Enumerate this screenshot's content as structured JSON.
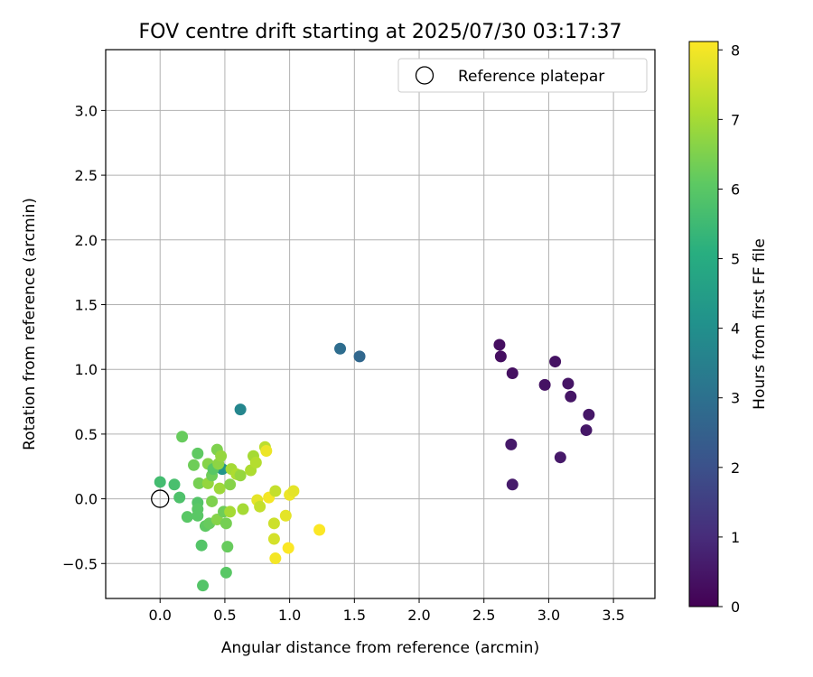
{
  "chart_data": {
    "type": "scatter",
    "title": "FOV centre drift starting at 2025/07/30 03:17:37",
    "xlabel": "Angular distance from reference (arcmin)",
    "ylabel": "Rotation from reference (arcmin)",
    "xlim": [
      -0.42,
      3.82
    ],
    "ylim": [
      -0.77,
      3.47
    ],
    "xticks": [
      "0.0",
      "0.5",
      "1.0",
      "1.5",
      "2.0",
      "2.5",
      "3.0",
      "3.5"
    ],
    "xtick_values": [
      0,
      0.5,
      1,
      1.5,
      2,
      2.5,
      3,
      3.5
    ],
    "yticks": [
      "−0.5",
      "0.0",
      "0.5",
      "1.0",
      "1.5",
      "2.0",
      "2.5",
      "3.0"
    ],
    "ytick_values": [
      -0.5,
      0,
      0.5,
      1,
      1.5,
      2,
      2.5,
      3
    ],
    "grid": true,
    "legend_position": "top-right",
    "legend": {
      "label": "Reference platepar"
    },
    "reference_point": {
      "x": 0,
      "y": 0
    },
    "colorbar": {
      "label": "Hours from first FF file",
      "colormap": "viridis",
      "range": [
        0,
        8.12
      ],
      "ticks": [
        "0",
        "1",
        "2",
        "3",
        "4",
        "5",
        "6",
        "7",
        "8"
      ],
      "tick_values": [
        0,
        1,
        2,
        3,
        4,
        5,
        6,
        7,
        8
      ]
    },
    "points": [
      {
        "x": 2.62,
        "y": 1.19,
        "h": 0.3
      },
      {
        "x": 2.63,
        "y": 1.1,
        "h": 0.3
      },
      {
        "x": 2.72,
        "y": 0.97,
        "h": 0.35
      },
      {
        "x": 3.05,
        "y": 1.06,
        "h": 0.4
      },
      {
        "x": 2.97,
        "y": 0.88,
        "h": 0.4
      },
      {
        "x": 3.15,
        "y": 0.89,
        "h": 0.45
      },
      {
        "x": 3.17,
        "y": 0.79,
        "h": 0.45
      },
      {
        "x": 3.31,
        "y": 0.65,
        "h": 0.5
      },
      {
        "x": 3.29,
        "y": 0.53,
        "h": 0.5
      },
      {
        "x": 2.71,
        "y": 0.42,
        "h": 0.55
      },
      {
        "x": 3.09,
        "y": 0.32,
        "h": 0.55
      },
      {
        "x": 2.72,
        "y": 0.11,
        "h": 0.6
      },
      {
        "x": 1.39,
        "y": 1.16,
        "h": 2.9
      },
      {
        "x": 1.54,
        "y": 1.1,
        "h": 2.7
      },
      {
        "x": 0.62,
        "y": 0.69,
        "h": 3.7
      },
      {
        "x": 0.48,
        "y": 0.23,
        "h": 4.2
      },
      {
        "x": 0.0,
        "y": 0.13,
        "h": 5.6
      },
      {
        "x": 0.11,
        "y": 0.11,
        "h": 5.7
      },
      {
        "x": 0.15,
        "y": 0.01,
        "h": 5.8
      },
      {
        "x": 0.17,
        "y": 0.48,
        "h": 6.2
      },
      {
        "x": 0.21,
        "y": -0.14,
        "h": 6.0
      },
      {
        "x": 0.26,
        "y": 0.26,
        "h": 6.3
      },
      {
        "x": 0.29,
        "y": 0.35,
        "h": 6.1
      },
      {
        "x": 0.29,
        "y": -0.03,
        "h": 5.9
      },
      {
        "x": 0.29,
        "y": -0.08,
        "h": 6.0
      },
      {
        "x": 0.29,
        "y": -0.13,
        "h": 6.0
      },
      {
        "x": 0.3,
        "y": 0.12,
        "h": 6.4
      },
      {
        "x": 0.32,
        "y": -0.36,
        "h": 5.9
      },
      {
        "x": 0.33,
        "y": -0.67,
        "h": 5.9
      },
      {
        "x": 0.35,
        "y": -0.21,
        "h": 6.1
      },
      {
        "x": 0.37,
        "y": 0.27,
        "h": 6.6
      },
      {
        "x": 0.37,
        "y": 0.12,
        "h": 6.8
      },
      {
        "x": 0.38,
        "y": -0.19,
        "h": 6.2
      },
      {
        "x": 0.4,
        "y": -0.02,
        "h": 6.5
      },
      {
        "x": 0.4,
        "y": 0.18,
        "h": 6.3
      },
      {
        "x": 0.41,
        "y": 0.23,
        "h": 6.0
      },
      {
        "x": 0.44,
        "y": -0.16,
        "h": 6.6
      },
      {
        "x": 0.44,
        "y": 0.38,
        "h": 6.5
      },
      {
        "x": 0.45,
        "y": 0.27,
        "h": 6.7
      },
      {
        "x": 0.46,
        "y": 0.08,
        "h": 6.9
      },
      {
        "x": 0.47,
        "y": 0.33,
        "h": 6.8
      },
      {
        "x": 0.49,
        "y": -0.1,
        "h": 6.3
      },
      {
        "x": 0.51,
        "y": -0.19,
        "h": 6.4
      },
      {
        "x": 0.51,
        "y": -0.57,
        "h": 6.0
      },
      {
        "x": 0.52,
        "y": -0.37,
        "h": 6.2
      },
      {
        "x": 0.54,
        "y": 0.11,
        "h": 6.6
      },
      {
        "x": 0.54,
        "y": -0.1,
        "h": 7.0
      },
      {
        "x": 0.55,
        "y": 0.23,
        "h": 7.0
      },
      {
        "x": 0.59,
        "y": 0.19,
        "h": 7.1
      },
      {
        "x": 0.62,
        "y": 0.18,
        "h": 6.8
      },
      {
        "x": 0.64,
        "y": -0.08,
        "h": 7.0
      },
      {
        "x": 0.7,
        "y": 0.22,
        "h": 7.1
      },
      {
        "x": 0.72,
        "y": 0.33,
        "h": 7.0
      },
      {
        "x": 0.74,
        "y": 0.28,
        "h": 7.2
      },
      {
        "x": 0.75,
        "y": -0.01,
        "h": 7.8
      },
      {
        "x": 0.77,
        "y": -0.06,
        "h": 7.4
      },
      {
        "x": 0.81,
        "y": 0.4,
        "h": 7.3
      },
      {
        "x": 0.82,
        "y": 0.37,
        "h": 7.9
      },
      {
        "x": 0.84,
        "y": 0.01,
        "h": 8.0
      },
      {
        "x": 0.88,
        "y": -0.19,
        "h": 7.5
      },
      {
        "x": 0.88,
        "y": -0.31,
        "h": 7.6
      },
      {
        "x": 0.89,
        "y": 0.06,
        "h": 7.4
      },
      {
        "x": 0.89,
        "y": -0.46,
        "h": 8.0
      },
      {
        "x": 0.97,
        "y": -0.13,
        "h": 7.8
      },
      {
        "x": 0.99,
        "y": -0.38,
        "h": 8.1
      },
      {
        "x": 1.0,
        "y": 0.03,
        "h": 7.9
      },
      {
        "x": 1.03,
        "y": 0.06,
        "h": 7.8
      },
      {
        "x": 1.23,
        "y": -0.24,
        "h": 8.1
      }
    ]
  }
}
